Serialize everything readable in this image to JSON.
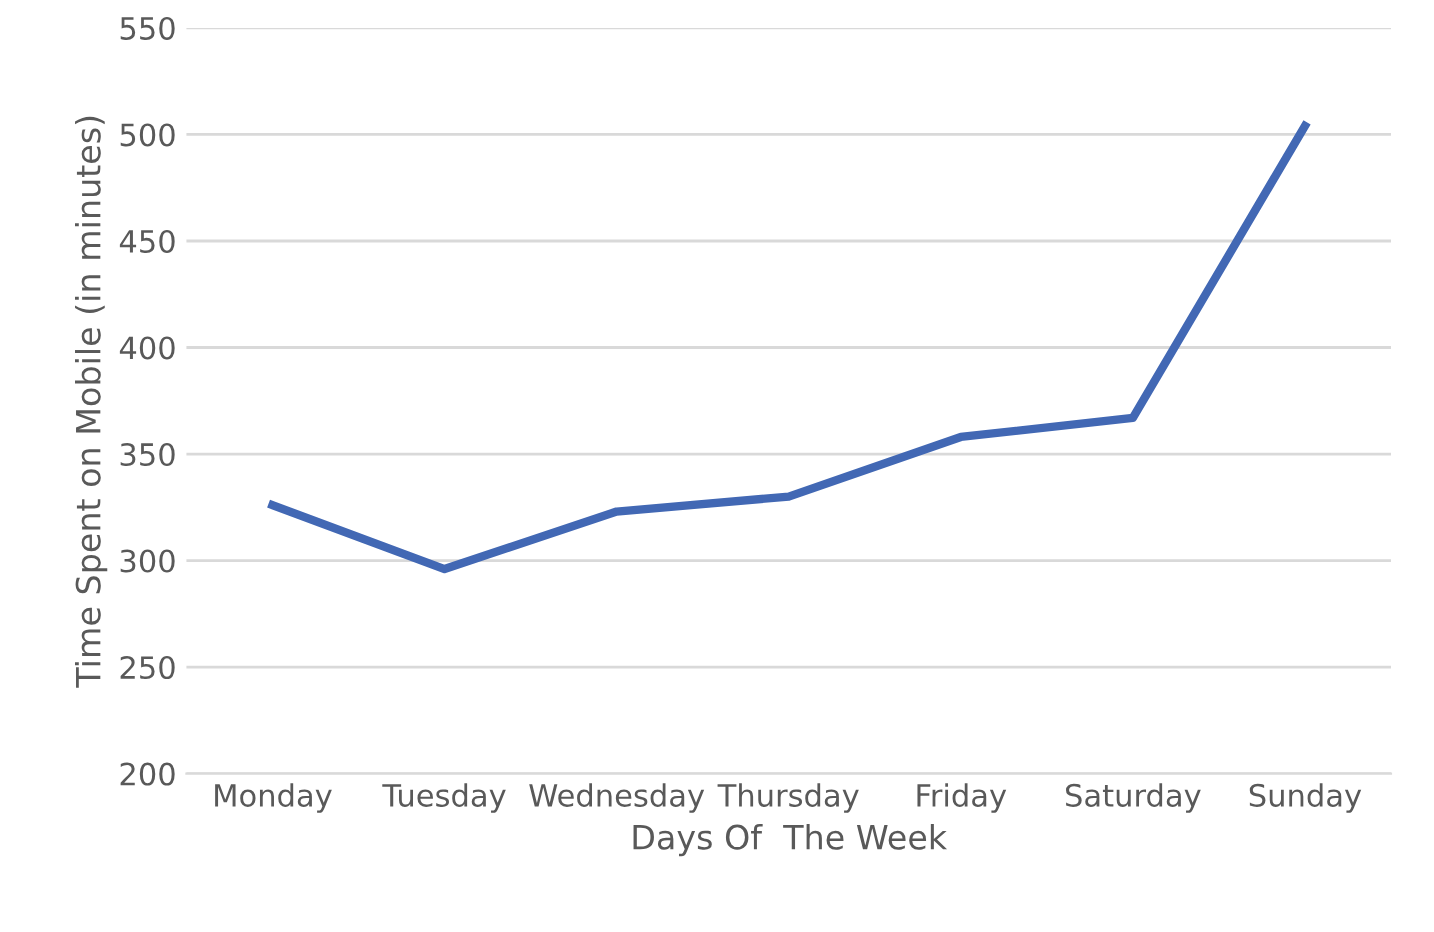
{
  "chart_data": {
    "type": "line",
    "xlabel": "Days Of  The Week",
    "ylabel": "Time Spent on Mobile (in minutes)",
    "categories": [
      "Monday",
      "Tuesday",
      "Wednesday",
      "Thursday",
      "Friday",
      "Saturday",
      "Sunday"
    ],
    "series": [
      {
        "color": "#4268b4",
        "values": [
          326,
          296,
          323,
          330,
          358,
          367,
          504
        ]
      }
    ],
    "ylim": [
      200,
      550
    ],
    "yticks": [
      200,
      250,
      300,
      350,
      400,
      450,
      500,
      550
    ],
    "grid": "y",
    "marker": "none",
    "line_style": "solid",
    "legend": false
  }
}
